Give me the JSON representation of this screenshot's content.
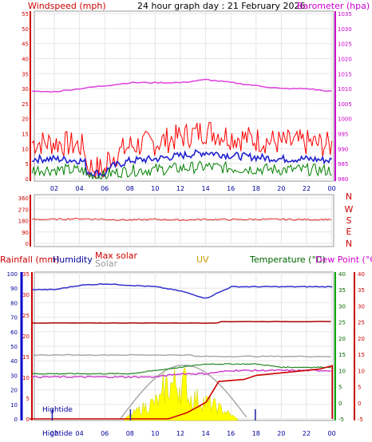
{
  "header": {
    "windspeed_label": "Windspeed (mph)",
    "title": "24 hour graph day : 21 February 2026",
    "barometer_label": "Barometer (hpa)"
  },
  "x_ticks": [
    "02",
    "04",
    "06",
    "08",
    "10",
    "12",
    "14",
    "16",
    "18",
    "20",
    "22",
    "00"
  ],
  "wind_axis": {
    "ticks": [
      "0",
      "5",
      "10",
      "15",
      "20",
      "25",
      "30",
      "35",
      "40",
      "45",
      "50",
      "55"
    ]
  },
  "baro_axis": {
    "ticks": [
      "980",
      "985",
      "990",
      "995",
      "1000",
      "1005",
      "1010",
      "1015",
      "1020",
      "1025",
      "1030",
      "1035"
    ]
  },
  "dir_axis": {
    "ticks": [
      "0",
      "90",
      "180",
      "270",
      "360"
    ],
    "compass": [
      "N",
      "W",
      "S",
      "E",
      "N"
    ]
  },
  "bottom_labels": {
    "rainfall": "Rainfall (mm)",
    "humidity": "Humidity",
    "max_solar": "Max solar",
    "solar": "Solar",
    "uv": "UV",
    "temperature": "Temperature (°C)",
    "dew_point": "Dew Point (°C)",
    "hightide": "Hightide"
  },
  "bottom_axes": {
    "pct": [
      "0",
      "10",
      "20",
      "30",
      "40",
      "50",
      "60",
      "70",
      "80",
      "90",
      "100"
    ],
    "rain": [
      "0",
      "5",
      "10",
      "15",
      "20",
      "25",
      "30",
      "35"
    ],
    "temp": [
      "-5",
      "0",
      "5",
      "10",
      "15",
      "20",
      "25",
      "30",
      "35",
      "40"
    ]
  },
  "colors": {
    "wind_gust": "#ff0000",
    "wind_avg": "#2020d0",
    "wind_low": "#008000",
    "barometer": "#e040e0",
    "direction": "#e02020",
    "humidity": "#3030cc",
    "max_solar": "#aaaaaa",
    "uv_solar_fill": "#ffff00",
    "temperature": "#228822",
    "dew_point": "#cc44cc",
    "rain": "#cc0000",
    "axis_left": "#0000cc",
    "axis_right": "#00aa00"
  },
  "chart_data": [
    {
      "type": "line",
      "title": "24 hour graph day : 21 February 2026",
      "x": [
        "02",
        "04",
        "06",
        "08",
        "10",
        "12",
        "14",
        "16",
        "18",
        "20",
        "22",
        "00"
      ],
      "series": [
        {
          "name": "Windspeed (mph)",
          "values": [
            12,
            11,
            6,
            11,
            12,
            14,
            16,
            14,
            13,
            12,
            12,
            11
          ]
        },
        {
          "name": "Barometer (hpa)",
          "values": [
            1009,
            1010,
            1011,
            1012,
            1012,
            1012,
            1013,
            1012,
            1011,
            1010,
            1010,
            1009
          ]
        }
      ],
      "ylim": [
        0,
        55
      ],
      "y2lim": [
        980,
        1035
      ]
    },
    {
      "type": "line",
      "x": [
        "02",
        "04",
        "06",
        "08",
        "10",
        "12",
        "14",
        "16",
        "18",
        "20",
        "22",
        "00"
      ],
      "series": [
        {
          "name": "Direction",
          "values": [
            190,
            195,
            190,
            185,
            190,
            185,
            190,
            188,
            190,
            190,
            188,
            190
          ]
        }
      ],
      "ylim": [
        0,
        360
      ]
    },
    {
      "type": "line",
      "x": [
        "02",
        "04",
        "06",
        "08",
        "10",
        "12",
        "14",
        "16",
        "18",
        "20",
        "22",
        "00"
      ],
      "series": [
        {
          "name": "Humidity",
          "values": [
            89,
            92,
            93,
            92,
            91,
            88,
            83,
            91,
            91,
            91,
            91,
            91
          ]
        },
        {
          "name": "Temperature (°C)",
          "values": [
            9,
            9,
            9,
            9,
            10,
            11,
            12,
            12,
            12,
            11,
            11,
            11
          ]
        },
        {
          "name": "Dew Point (°C)",
          "values": [
            8,
            8,
            8,
            8,
            8,
            9,
            9,
            10,
            10,
            10,
            10,
            10
          ]
        },
        {
          "name": "Rainfall (mm)",
          "values": [
            0,
            0,
            0,
            0,
            0,
            0,
            0,
            5,
            5,
            5,
            6,
            9
          ]
        },
        {
          "name": "Solar",
          "values": [
            0,
            0,
            0,
            0,
            10,
            20,
            15,
            5,
            0,
            0,
            0,
            0
          ]
        }
      ],
      "ylim": [
        0,
        100
      ]
    }
  ]
}
